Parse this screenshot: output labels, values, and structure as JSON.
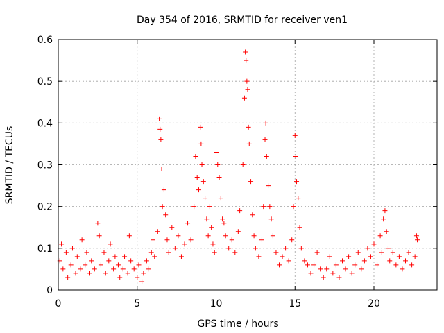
{
  "chart_data": {
    "type": "scatter",
    "title": "Day 354 of 2016, SRMTID for receiver ven1",
    "xlabel": "GPS time / hours",
    "ylabel": "SRMTID / TECUs",
    "xlim": [
      0,
      24
    ],
    "ylim": [
      0,
      0.6
    ],
    "xticks": [
      0,
      5,
      10,
      15,
      20
    ],
    "xtick_labels": [
      "0",
      "5",
      "10",
      "15",
      "20"
    ],
    "yticks": [
      0,
      0.1,
      0.2,
      0.3,
      0.4,
      0.5,
      0.6
    ],
    "ytick_labels": [
      "0",
      "0.1",
      "0.2",
      "0.3",
      "0.4",
      "0.5",
      "0.6"
    ],
    "grid": true,
    "marker": "+",
    "series": [
      {
        "name": "SRMTID",
        "color": "#ff0000",
        "points": [
          [
            0.1,
            0.07
          ],
          [
            0.2,
            0.11
          ],
          [
            0.3,
            0.05
          ],
          [
            0.5,
            0.09
          ],
          [
            0.6,
            0.03
          ],
          [
            0.8,
            0.06
          ],
          [
            0.9,
            0.1
          ],
          [
            1.1,
            0.04
          ],
          [
            1.2,
            0.08
          ],
          [
            1.4,
            0.05
          ],
          [
            1.5,
            0.12
          ],
          [
            1.7,
            0.06
          ],
          [
            1.8,
            0.09
          ],
          [
            2.0,
            0.04
          ],
          [
            2.1,
            0.07
          ],
          [
            2.3,
            0.05
          ],
          [
            2.5,
            0.16
          ],
          [
            2.6,
            0.13
          ],
          [
            2.7,
            0.06
          ],
          [
            2.9,
            0.09
          ],
          [
            3.0,
            0.04
          ],
          [
            3.2,
            0.07
          ],
          [
            3.3,
            0.11
          ],
          [
            3.5,
            0.05
          ],
          [
            3.6,
            0.08
          ],
          [
            3.8,
            0.06
          ],
          [
            3.9,
            0.03
          ],
          [
            4.1,
            0.05
          ],
          [
            4.2,
            0.08
          ],
          [
            4.4,
            0.04
          ],
          [
            4.5,
            0.13
          ],
          [
            4.6,
            0.07
          ],
          [
            4.8,
            0.05
          ],
          [
            5.0,
            0.03
          ],
          [
            5.1,
            0.06
          ],
          [
            5.3,
            0.02
          ],
          [
            5.4,
            0.04
          ],
          [
            5.6,
            0.07
          ],
          [
            5.7,
            0.05
          ],
          [
            5.9,
            0.09
          ],
          [
            6.0,
            0.12
          ],
          [
            6.1,
            0.08
          ],
          [
            6.3,
            0.14
          ],
          [
            6.4,
            0.41
          ],
          [
            6.45,
            0.385
          ],
          [
            6.5,
            0.36
          ],
          [
            6.55,
            0.29
          ],
          [
            6.6,
            0.2
          ],
          [
            6.7,
            0.24
          ],
          [
            6.8,
            0.18
          ],
          [
            6.9,
            0.12
          ],
          [
            7.0,
            0.09
          ],
          [
            7.2,
            0.15
          ],
          [
            7.4,
            0.1
          ],
          [
            7.6,
            0.13
          ],
          [
            7.8,
            0.08
          ],
          [
            8.0,
            0.11
          ],
          [
            8.2,
            0.16
          ],
          [
            8.4,
            0.12
          ],
          [
            8.6,
            0.2
          ],
          [
            8.7,
            0.32
          ],
          [
            8.8,
            0.27
          ],
          [
            8.9,
            0.24
          ],
          [
            9.0,
            0.39
          ],
          [
            9.05,
            0.35
          ],
          [
            9.1,
            0.3
          ],
          [
            9.2,
            0.26
          ],
          [
            9.3,
            0.22
          ],
          [
            9.4,
            0.17
          ],
          [
            9.5,
            0.13
          ],
          [
            9.6,
            0.2
          ],
          [
            9.7,
            0.15
          ],
          [
            9.8,
            0.11
          ],
          [
            9.9,
            0.09
          ],
          [
            10.0,
            0.33
          ],
          [
            10.1,
            0.3
          ],
          [
            10.2,
            0.27
          ],
          [
            10.3,
            0.22
          ],
          [
            10.4,
            0.17
          ],
          [
            10.5,
            0.16
          ],
          [
            10.6,
            0.13
          ],
          [
            10.8,
            0.1
          ],
          [
            11.0,
            0.12
          ],
          [
            11.2,
            0.09
          ],
          [
            11.4,
            0.14
          ],
          [
            11.5,
            0.19
          ],
          [
            11.7,
            0.3
          ],
          [
            11.8,
            0.46
          ],
          [
            11.85,
            0.57
          ],
          [
            11.9,
            0.55
          ],
          [
            11.95,
            0.5
          ],
          [
            12.0,
            0.48
          ],
          [
            12.05,
            0.39
          ],
          [
            12.1,
            0.35
          ],
          [
            12.2,
            0.26
          ],
          [
            12.3,
            0.18
          ],
          [
            12.4,
            0.13
          ],
          [
            12.5,
            0.1
          ],
          [
            12.7,
            0.08
          ],
          [
            12.9,
            0.12
          ],
          [
            13.0,
            0.2
          ],
          [
            13.1,
            0.36
          ],
          [
            13.15,
            0.4
          ],
          [
            13.2,
            0.32
          ],
          [
            13.3,
            0.25
          ],
          [
            13.4,
            0.2
          ],
          [
            13.5,
            0.17
          ],
          [
            13.6,
            0.13
          ],
          [
            13.8,
            0.09
          ],
          [
            14.0,
            0.06
          ],
          [
            14.2,
            0.08
          ],
          [
            14.4,
            0.1
          ],
          [
            14.6,
            0.07
          ],
          [
            14.8,
            0.12
          ],
          [
            14.9,
            0.2
          ],
          [
            15.0,
            0.37
          ],
          [
            15.05,
            0.32
          ],
          [
            15.1,
            0.26
          ],
          [
            15.2,
            0.22
          ],
          [
            15.3,
            0.15
          ],
          [
            15.4,
            0.1
          ],
          [
            15.6,
            0.07
          ],
          [
            15.8,
            0.06
          ],
          [
            16.0,
            0.04
          ],
          [
            16.2,
            0.06
          ],
          [
            16.4,
            0.09
          ],
          [
            16.6,
            0.05
          ],
          [
            16.8,
            0.03
          ],
          [
            17.0,
            0.05
          ],
          [
            17.2,
            0.08
          ],
          [
            17.4,
            0.04
          ],
          [
            17.6,
            0.06
          ],
          [
            17.8,
            0.03
          ],
          [
            18.0,
            0.07
          ],
          [
            18.2,
            0.05
          ],
          [
            18.4,
            0.08
          ],
          [
            18.6,
            0.04
          ],
          [
            18.8,
            0.06
          ],
          [
            19.0,
            0.09
          ],
          [
            19.2,
            0.05
          ],
          [
            19.4,
            0.07
          ],
          [
            19.6,
            0.1
          ],
          [
            19.8,
            0.08
          ],
          [
            20.0,
            0.11
          ],
          [
            20.2,
            0.06
          ],
          [
            20.4,
            0.13
          ],
          [
            20.5,
            0.09
          ],
          [
            20.6,
            0.17
          ],
          [
            20.7,
            0.19
          ],
          [
            20.8,
            0.14
          ],
          [
            20.9,
            0.1
          ],
          [
            21.0,
            0.07
          ],
          [
            21.2,
            0.09
          ],
          [
            21.4,
            0.06
          ],
          [
            21.6,
            0.08
          ],
          [
            21.8,
            0.05
          ],
          [
            22.0,
            0.07
          ],
          [
            22.2,
            0.09
          ],
          [
            22.4,
            0.06
          ],
          [
            22.6,
            0.08
          ],
          [
            22.7,
            0.13
          ],
          [
            22.75,
            0.12
          ]
        ]
      }
    ]
  }
}
